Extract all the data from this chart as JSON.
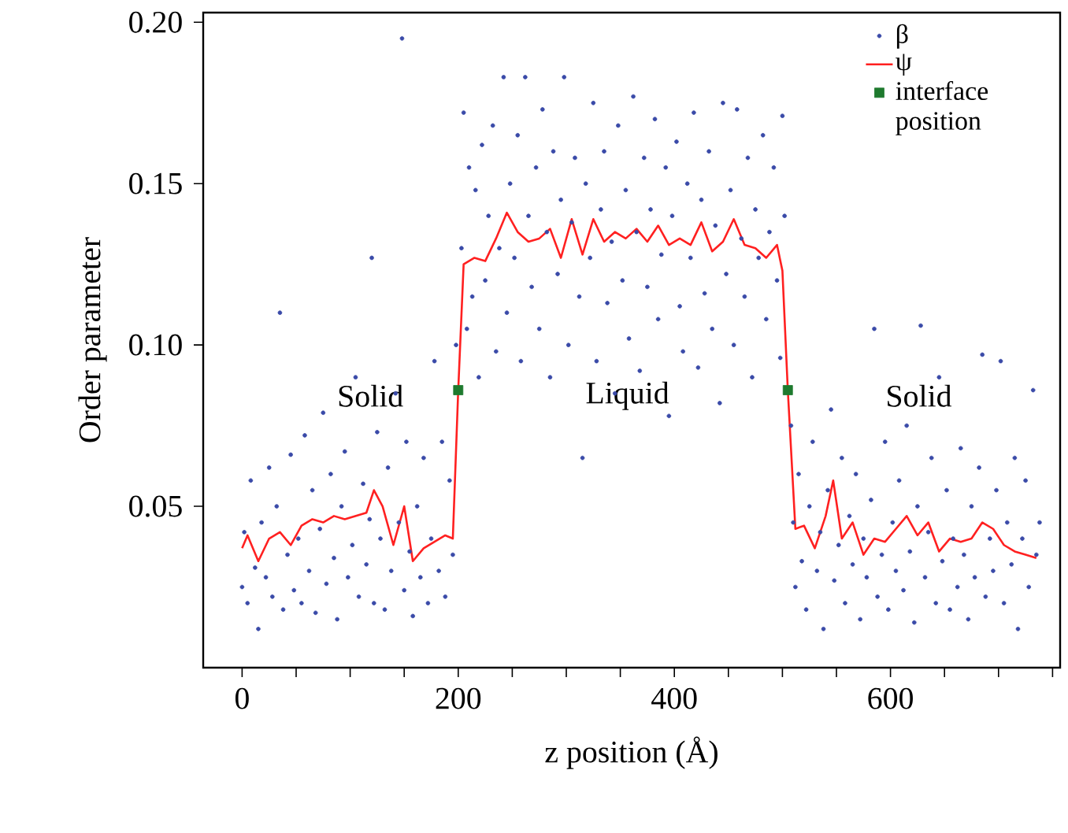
{
  "chart_data": {
    "type": "scatter",
    "xlabel": "z position (Å)",
    "ylabel": "Order parameter",
    "xlim": [
      -36,
      757
    ],
    "ylim": [
      0,
      0.203
    ],
    "xticks": [
      0,
      {
        "value": 50,
        "label": null
      },
      {
        "value": 100,
        "label": null
      },
      {
        "value": 150,
        "label": null
      },
      200,
      {
        "value": 250,
        "label": null
      },
      {
        "value": 300,
        "label": null
      },
      {
        "value": 350,
        "label": null
      },
      400,
      {
        "value": 450,
        "label": null
      },
      {
        "value": 500,
        "label": null
      },
      {
        "value": 550,
        "label": null
      },
      600,
      {
        "value": 650,
        "label": null
      },
      {
        "value": 700,
        "label": null
      },
      {
        "value": 750,
        "label": null
      }
    ],
    "yticks": [
      0.05,
      {
        "value": 0.1,
        "label": "0.10"
      },
      0.15,
      {
        "value": 0.2,
        "label": "0.20"
      }
    ],
    "grid": false,
    "legend": "top right",
    "annotations": [
      "Solid",
      "Liquid",
      "Solid"
    ],
    "series": [
      {
        "name": "β",
        "marker": "circle",
        "color": "#3a4aa8",
        "x": [
          0,
          2,
          5,
          8,
          12,
          15,
          18,
          22,
          25,
          28,
          32,
          35,
          38,
          42,
          45,
          48,
          52,
          55,
          58,
          62,
          65,
          68,
          72,
          75,
          78,
          82,
          85,
          88,
          92,
          95,
          98,
          102,
          105,
          108,
          112,
          115,
          118,
          120,
          122,
          125,
          128,
          132,
          135,
          138,
          142,
          145,
          148,
          150,
          152,
          155,
          158,
          162,
          165,
          168,
          172,
          175,
          178,
          182,
          185,
          188,
          192,
          195,
          198,
          203,
          205,
          208,
          210,
          213,
          216,
          219,
          222,
          225,
          228,
          232,
          235,
          238,
          242,
          245,
          248,
          252,
          255,
          258,
          262,
          265,
          268,
          272,
          275,
          278,
          282,
          285,
          288,
          292,
          295,
          298,
          302,
          305,
          308,
          312,
          315,
          318,
          322,
          325,
          328,
          332,
          335,
          338,
          342,
          345,
          348,
          352,
          355,
          358,
          362,
          365,
          368,
          372,
          375,
          378,
          382,
          385,
          388,
          392,
          395,
          398,
          402,
          405,
          408,
          412,
          415,
          418,
          422,
          425,
          428,
          432,
          435,
          438,
          442,
          445,
          448,
          452,
          455,
          458,
          462,
          465,
          468,
          472,
          475,
          478,
          482,
          485,
          488,
          492,
          495,
          498,
          500,
          502,
          508,
          510,
          512,
          515,
          518,
          522,
          525,
          528,
          532,
          535,
          538,
          542,
          545,
          548,
          552,
          555,
          558,
          562,
          565,
          568,
          572,
          575,
          578,
          582,
          585,
          588,
          592,
          595,
          598,
          602,
          605,
          608,
          612,
          615,
          618,
          622,
          625,
          628,
          632,
          635,
          638,
          642,
          645,
          648,
          652,
          655,
          658,
          662,
          665,
          668,
          672,
          675,
          678,
          682,
          685,
          688,
          692,
          695,
          698,
          702,
          705,
          708,
          712,
          715,
          718,
          722,
          725,
          728,
          732,
          735,
          738
        ],
        "values": [
          0.025,
          0.042,
          0.02,
          0.058,
          0.031,
          0.012,
          0.045,
          0.028,
          0.062,
          0.022,
          0.05,
          0.11,
          0.018,
          0.035,
          0.066,
          0.024,
          0.04,
          0.02,
          0.072,
          0.03,
          0.055,
          0.017,
          0.043,
          0.079,
          0.026,
          0.06,
          0.034,
          0.015,
          0.05,
          0.067,
          0.028,
          0.038,
          0.09,
          0.022,
          0.057,
          0.032,
          0.046,
          0.127,
          0.02,
          0.073,
          0.04,
          0.018,
          0.062,
          0.03,
          0.085,
          0.045,
          0.195,
          0.024,
          0.07,
          0.036,
          0.016,
          0.05,
          0.028,
          0.065,
          0.02,
          0.04,
          0.095,
          0.03,
          0.07,
          0.022,
          0.058,
          0.035,
          0.1,
          0.13,
          0.172,
          0.105,
          0.155,
          0.115,
          0.148,
          0.09,
          0.162,
          0.12,
          0.14,
          0.168,
          0.098,
          0.13,
          0.183,
          0.11,
          0.15,
          0.127,
          0.165,
          0.095,
          0.183,
          0.14,
          0.118,
          0.155,
          0.105,
          0.173,
          0.135,
          0.09,
          0.16,
          0.122,
          0.145,
          0.183,
          0.1,
          0.138,
          0.158,
          0.115,
          0.065,
          0.15,
          0.127,
          0.175,
          0.095,
          0.142,
          0.16,
          0.113,
          0.132,
          0.085,
          0.168,
          0.12,
          0.148,
          0.102,
          0.177,
          0.135,
          0.092,
          0.158,
          0.118,
          0.142,
          0.17,
          0.108,
          0.128,
          0.155,
          0.078,
          0.14,
          0.163,
          0.112,
          0.098,
          0.15,
          0.127,
          0.172,
          0.093,
          0.145,
          0.116,
          0.16,
          0.105,
          0.137,
          0.082,
          0.175,
          0.122,
          0.148,
          0.1,
          0.173,
          0.133,
          0.115,
          0.158,
          0.09,
          0.142,
          0.127,
          0.165,
          0.108,
          0.135,
          0.155,
          0.12,
          0.096,
          0.171,
          0.14,
          0.075,
          0.045,
          0.025,
          0.06,
          0.033,
          0.018,
          0.05,
          0.07,
          0.03,
          0.042,
          0.012,
          0.055,
          0.08,
          0.027,
          0.038,
          0.065,
          0.02,
          0.047,
          0.032,
          0.06,
          0.015,
          0.04,
          0.028,
          0.052,
          0.105,
          0.022,
          0.035,
          0.07,
          0.018,
          0.045,
          0.03,
          0.058,
          0.024,
          0.075,
          0.036,
          0.014,
          0.05,
          0.106,
          0.028,
          0.042,
          0.065,
          0.02,
          0.09,
          0.033,
          0.055,
          0.018,
          0.04,
          0.025,
          0.068,
          0.035,
          0.015,
          0.05,
          0.028,
          0.062,
          0.097,
          0.022,
          0.04,
          0.03,
          0.055,
          0.095,
          0.02,
          0.045,
          0.032,
          0.065,
          0.012,
          0.04,
          0.058,
          0.025,
          0.086,
          0.035,
          0.045
        ]
      },
      {
        "name": "ψ",
        "type": "line",
        "marker": "none",
        "line_style": "solid",
        "color": "#ff2020",
        "x": [
          0,
          5,
          15,
          25,
          35,
          45,
          55,
          65,
          75,
          85,
          95,
          105,
          115,
          122,
          130,
          140,
          150,
          158,
          168,
          178,
          188,
          195,
          200,
          205,
          215,
          225,
          235,
          245,
          255,
          265,
          275,
          285,
          295,
          305,
          315,
          325,
          335,
          345,
          355,
          365,
          375,
          385,
          395,
          405,
          415,
          425,
          435,
          445,
          455,
          465,
          475,
          485,
          495,
          500,
          505,
          512,
          520,
          530,
          540,
          547,
          555,
          565,
          575,
          585,
          595,
          605,
          615,
          625,
          635,
          645,
          655,
          665,
          675,
          685,
          695,
          705,
          715,
          725,
          735
        ],
        "values": [
          0.037,
          0.041,
          0.033,
          0.04,
          0.042,
          0.038,
          0.044,
          0.046,
          0.045,
          0.047,
          0.046,
          0.047,
          0.048,
          0.055,
          0.05,
          0.038,
          0.05,
          0.033,
          0.037,
          0.039,
          0.041,
          0.04,
          0.086,
          0.125,
          0.127,
          0.126,
          0.133,
          0.141,
          0.135,
          0.132,
          0.133,
          0.136,
          0.127,
          0.139,
          0.128,
          0.139,
          0.132,
          0.135,
          0.133,
          0.136,
          0.132,
          0.137,
          0.131,
          0.133,
          0.131,
          0.138,
          0.129,
          0.132,
          0.139,
          0.131,
          0.13,
          0.127,
          0.131,
          0.123,
          0.086,
          0.043,
          0.044,
          0.037,
          0.047,
          0.058,
          0.04,
          0.045,
          0.035,
          0.04,
          0.039,
          0.043,
          0.047,
          0.041,
          0.045,
          0.036,
          0.04,
          0.039,
          0.04,
          0.045,
          0.043,
          0.038,
          0.036,
          0.035,
          0.034
        ]
      },
      {
        "name": "interface position",
        "marker": "square",
        "color": "#1e7a2e",
        "x": [
          200,
          505
        ],
        "values": [
          0.086,
          0.086
        ]
      }
    ]
  }
}
